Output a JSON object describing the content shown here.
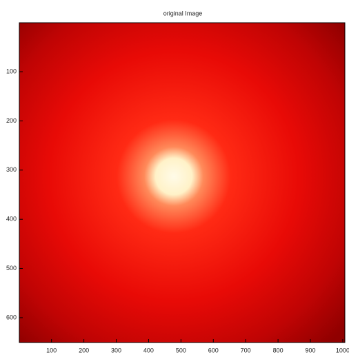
{
  "chart_data": {
    "type": "image",
    "title": "original Image",
    "xlim": [
      0.5,
      1006.5
    ],
    "ylim": [
      0.5,
      650.5
    ],
    "y_reversed": true,
    "xticks": [
      100,
      200,
      300,
      400,
      500,
      600,
      700,
      800,
      900,
      1000
    ],
    "yticks": [
      100,
      200,
      300,
      400,
      500,
      600
    ]
  }
}
